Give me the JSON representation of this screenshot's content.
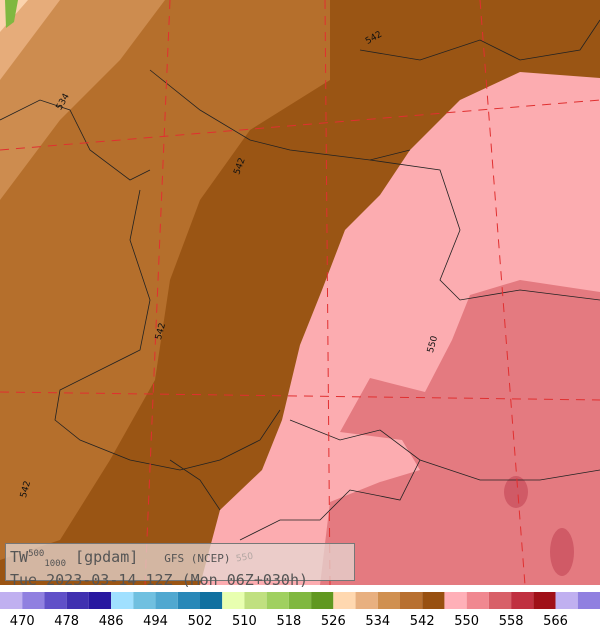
{
  "caption": {
    "variable": "TW",
    "level_top": "500",
    "level_bottom": "1000",
    "unit": "[gpdam]",
    "model": "GFS (NCEP)",
    "valid_time": "Tue 2023-03-14 12Z (Mon 06Z+030h)"
  },
  "contour_labels": [
    "534",
    "542",
    "542",
    "542",
    "542",
    "550",
    "550"
  ],
  "colorbar": {
    "labels": [
      470,
      478,
      486,
      494,
      502,
      510,
      518,
      526,
      534,
      542,
      550,
      558,
      566
    ]
  }
}
